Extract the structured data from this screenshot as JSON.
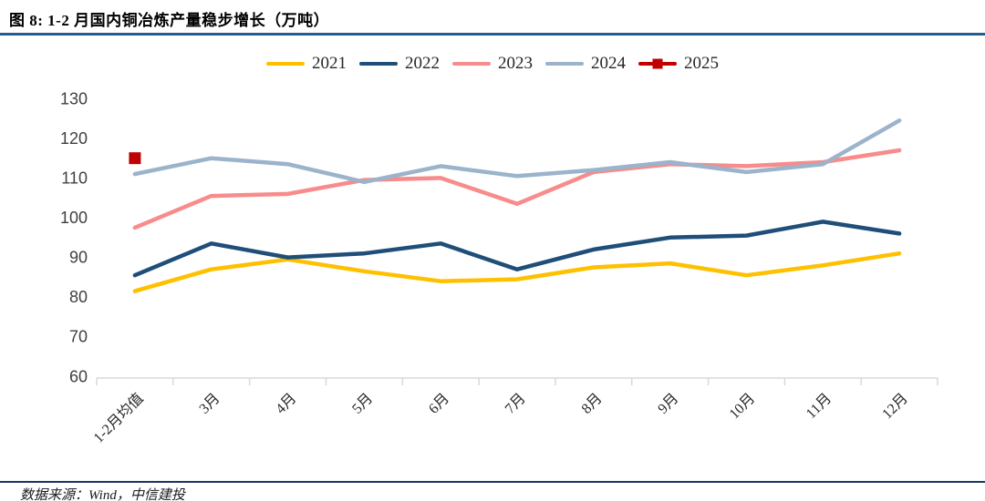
{
  "header": {
    "title": "图 8: 1-2 月国内铜冶炼产量稳步增长（万吨）",
    "rule_color": "#255E91"
  },
  "footer": {
    "source": "数据来源：Wind，中信建投",
    "rule_color": "#17375E"
  },
  "axis": {
    "line_color": "#D9D9D9",
    "ytick_color": "#404040",
    "xtick_color": "#262626"
  },
  "chart_data": {
    "type": "line",
    "title": "图 8: 1-2 月国内铜冶炼产量稳步增长（万吨）",
    "categories": [
      "1-2月均值",
      "3月",
      "4月",
      "5月",
      "6月",
      "7月",
      "8月",
      "9月",
      "10月",
      "11月",
      "12月"
    ],
    "series": [
      {
        "name": "2021",
        "color": "#FFC000",
        "values": [
          81.5,
          87,
          89.5,
          86.5,
          84,
          84.5,
          87.5,
          88.5,
          85.5,
          88,
          91
        ]
      },
      {
        "name": "2022",
        "color": "#1F4E79",
        "values": [
          85.5,
          93.5,
          90,
          91,
          93.5,
          87,
          92,
          95,
          95.5,
          99,
          96
        ]
      },
      {
        "name": "2023",
        "color": "#F88B8B",
        "values": [
          97.5,
          105.5,
          106,
          109.5,
          110,
          103.5,
          111.5,
          113.5,
          113,
          114,
          117
        ]
      },
      {
        "name": "2024",
        "color": "#9BB3CB",
        "values": [
          111,
          115,
          113.5,
          109,
          113,
          110.5,
          112,
          114,
          111.5,
          113.5,
          124.5
        ]
      },
      {
        "name": "2025",
        "color": "#C00000",
        "marker": "square",
        "values": [
          115,
          null,
          null,
          null,
          null,
          null,
          null,
          null,
          null,
          null,
          null
        ]
      }
    ],
    "ylim": [
      60,
      130
    ],
    "ytick_step": 10,
    "grid": false,
    "legend_position": "top",
    "xlabel": "",
    "ylabel": ""
  }
}
